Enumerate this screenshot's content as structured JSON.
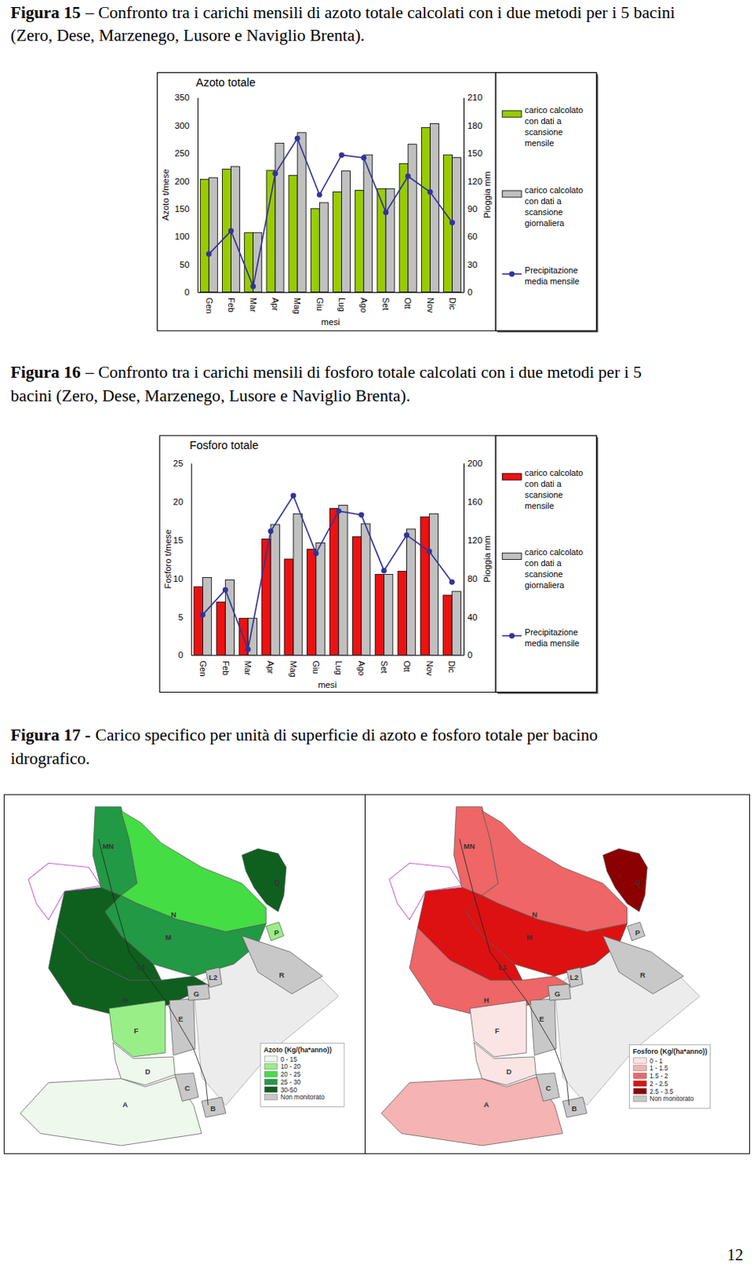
{
  "captions": [
    {
      "label": "Figura 15",
      "text": "– Confronto tra i carichi mensili di azoto totale calcolati con i due metodi per i 5 bacini (Zero, Dese, Marzenego, Lusore e Naviglio Brenta)."
    },
    {
      "label": "Figura 16",
      "text": "– Confronto tra i carichi mensili di fosforo totale calcolati con i due metodi per i 5 bacini (Zero, Dese, Marzenego, Lusore e Naviglio Brenta)."
    },
    {
      "label": "Figura 17 -",
      "text": "Carico specifico per unità di superficie di azoto e fosforo totale per bacino idrografico."
    }
  ],
  "chart_data": [
    {
      "type": "bar",
      "title": "Azoto totale",
      "x_label": "mesi",
      "y_label": "Azoto t/mese",
      "y2_label": "Pioggia mm",
      "categories": [
        "Gen",
        "Feb",
        "Mar",
        "Apr",
        "Mag",
        "Giu",
        "Lug",
        "Ago",
        "Set",
        "Ott",
        "Nov",
        "Dic"
      ],
      "ylim": [
        0,
        350
      ],
      "yticks": [
        0,
        50,
        100,
        150,
        200,
        250,
        300,
        350
      ],
      "y2lim": [
        0,
        210
      ],
      "y2ticks": [
        0,
        30,
        60,
        90,
        120,
        150,
        180,
        210
      ],
      "grid": false,
      "legend": "right",
      "series": [
        {
          "name": "carico calcolato con dati a scansione mensile",
          "type": "bar",
          "color": "#99cc00",
          "values": [
            203,
            221,
            107,
            219,
            210,
            150,
            180,
            183,
            186,
            231,
            296,
            247
          ]
        },
        {
          "name": "carico calcolato con dati a scansione giornaliera",
          "type": "bar",
          "color": "#c0c0c0",
          "values": [
            206,
            226,
            107,
            268,
            287,
            161,
            218,
            247,
            186,
            266,
            303,
            242
          ]
        },
        {
          "name": "Precipitazione media mensile",
          "type": "line",
          "color": "#333399",
          "marker": "circle",
          "axis": "y2",
          "values": [
            41,
            66,
            6,
            128,
            166,
            105,
            148,
            145,
            86,
            125,
            108,
            75
          ]
        }
      ]
    },
    {
      "type": "bar",
      "title": "Fosforo totale",
      "x_label": "mesi",
      "y_label": "Fosforo t/mese",
      "y2_label": "Pioggia mm",
      "categories": [
        "Gen",
        "Feb",
        "Mar",
        "Apr",
        "Mag",
        "Giu",
        "Lug",
        "Ago",
        "Set",
        "Ott",
        "Nov",
        "Dic"
      ],
      "ylim": [
        0,
        25
      ],
      "yticks": [
        0,
        5,
        10,
        15,
        20,
        25
      ],
      "y2lim": [
        0,
        200
      ],
      "y2ticks": [
        0,
        40,
        80,
        120,
        160,
        200
      ],
      "grid": false,
      "legend": "right",
      "series": [
        {
          "name": "carico calcolato con dati a scansione mensile",
          "type": "bar",
          "color": "#ee1111",
          "values": [
            8.9,
            6.9,
            4.8,
            15.1,
            12.5,
            13.8,
            19.1,
            15.4,
            10.5,
            10.9,
            18.0,
            7.8
          ]
        },
        {
          "name": "carico calcolato con dati a scansione giornaliera",
          "type": "bar",
          "color": "#c0c0c0",
          "values": [
            10.1,
            9.8,
            4.8,
            17.0,
            18.4,
            14.6,
            19.5,
            17.1,
            10.5,
            16.4,
            18.4,
            8.3
          ]
        },
        {
          "name": "Precipitazione media mensile",
          "type": "line",
          "color": "#333399",
          "marker": "circle",
          "axis": "y2",
          "values": [
            42,
            68,
            6,
            129,
            166,
            106,
            150,
            146,
            88,
            125,
            108,
            76
          ]
        }
      ]
    }
  ],
  "maps": [
    {
      "legend_title": "Azoto (Kg/(ha*anno))",
      "classes": [
        {
          "label": "0 - 15",
          "color": "#eef8ec"
        },
        {
          "label": "10 - 20",
          "color": "#99ee88"
        },
        {
          "label": "20 - 25",
          "color": "#44dd44"
        },
        {
          "label": "25 - 30",
          "color": "#229944"
        },
        {
          "label": "30-50",
          "color": "#0f5f1f"
        },
        {
          "label": "Non monitorato",
          "color": "#c8c8c8"
        }
      ],
      "basins": [
        {
          "label": "MN",
          "class": "25 - 30"
        },
        {
          "label": "N",
          "class": "20 - 25"
        },
        {
          "label": "M",
          "class": "25 - 30"
        },
        {
          "label": "L1",
          "class": "30-50"
        },
        {
          "label": "H",
          "class": "30-50"
        },
        {
          "label": "Q",
          "class": "30-50"
        },
        {
          "label": "P",
          "class": "10 - 20"
        },
        {
          "label": "F",
          "class": "10 - 20"
        },
        {
          "label": "E",
          "class": "Non monitorato"
        },
        {
          "label": "G",
          "class": "Non monitorato"
        },
        {
          "label": "D",
          "class": "0 - 15"
        },
        {
          "label": "A",
          "class": "0 - 15"
        },
        {
          "label": "C",
          "class": "Non monitorato"
        },
        {
          "label": "B",
          "class": "Non monitorato"
        },
        {
          "label": "R",
          "class": "Non monitorato"
        },
        {
          "label": "L2",
          "class": "Non monitorato"
        }
      ]
    },
    {
      "legend_title": "Fosforo (Kg/(ha*anno))",
      "classes": [
        {
          "label": "0 - 1",
          "color": "#fbe4e4"
        },
        {
          "label": "1 - 1.5",
          "color": "#f5b3b3"
        },
        {
          "label": "1.5 - 2",
          "color": "#ee6666"
        },
        {
          "label": "2 - 2.5",
          "color": "#dd1111"
        },
        {
          "label": "2.5 - 3.5",
          "color": "#8b0000"
        },
        {
          "label": "Non monitorato",
          "color": "#c8c8c8"
        }
      ],
      "basins": [
        {
          "label": "MN",
          "class": "1.5 - 2"
        },
        {
          "label": "N",
          "class": "1.5 - 2"
        },
        {
          "label": "M",
          "class": "2 - 2.5"
        },
        {
          "label": "L1",
          "class": "2 - 2.5"
        },
        {
          "label": "H",
          "class": "1.5 - 2"
        },
        {
          "label": "Q",
          "class": "2.5 - 3.5"
        },
        {
          "label": "P",
          "class": "Non monitorato"
        },
        {
          "label": "F",
          "class": "0 - 1"
        },
        {
          "label": "E",
          "class": "Non monitorato"
        },
        {
          "label": "G",
          "class": "Non monitorato"
        },
        {
          "label": "D",
          "class": "0 - 1"
        },
        {
          "label": "A",
          "class": "1 - 1.5"
        },
        {
          "label": "C",
          "class": "Non monitorato"
        },
        {
          "label": "B",
          "class": "Non monitorato"
        },
        {
          "label": "R",
          "class": "Non monitorato"
        },
        {
          "label": "L2",
          "class": "Non monitorato"
        }
      ]
    }
  ],
  "page_number": "12"
}
